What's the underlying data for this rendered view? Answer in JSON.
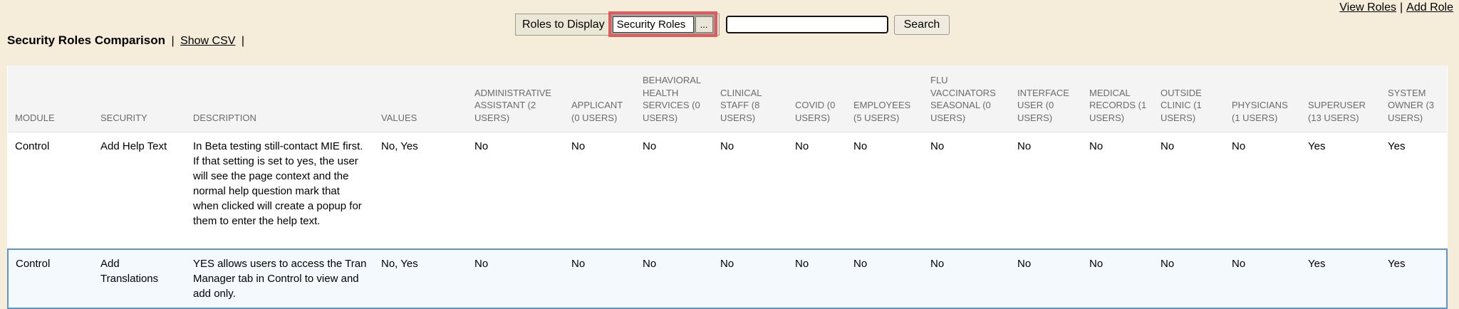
{
  "colors": {
    "page_bg": "#f5edda",
    "highlight_red": "#e15b5e",
    "table_header_bg": "#f4f4f4",
    "highlight_row_bg": "#f3f9fd",
    "highlight_row_border": "#5f94c5"
  },
  "top_bar": {
    "view_roles_label": "View Roles",
    "separator": "|",
    "add_role_label": "Add Role"
  },
  "controls": {
    "roles_to_display_label": "Roles to Display",
    "roles_select_value": "Security Roles",
    "ellipsis_button_label": "...",
    "search_input_value": "",
    "search_button_label": "Search"
  },
  "header": {
    "title": "Security Roles Comparison",
    "separator": "|",
    "csv_link_label": "Show CSV"
  },
  "table": {
    "columns": [
      "MODULE",
      "SECURITY",
      "DESCRIPTION",
      "VALUES",
      "ADMINISTRATIVE ASSISTANT (2 USERS)",
      "APPLICANT (0 USERS)",
      "BEHAVIORAL HEALTH SERVICES (0 USERS)",
      "CLINICAL STAFF (8 USERS)",
      "COVID (0 USERS)",
      "EMPLOYEES (5 USERS)",
      "FLU VACCINATORS SEASONAL (0 USERS)",
      "INTERFACE USER (0 USERS)",
      "MEDICAL RECORDS (1 USERS)",
      "OUTSIDE CLINIC (1 USERS)",
      "PHYSICIANS (1 USERS)",
      "SUPERUSER (13 USERS)",
      "SYSTEM OWNER (3 USERS)"
    ],
    "rows": [
      {
        "highlighted": false,
        "cells": [
          "Control",
          "Add Help Text",
          "In Beta testing still-contact MIE first. If that setting is set to yes, the user will see the page context and the normal help question mark that when clicked will create a popup for them to enter the help text.",
          "No, Yes",
          "No",
          "No",
          "No",
          "No",
          "No",
          "No",
          "No",
          "No",
          "No",
          "No",
          "No",
          "Yes",
          "Yes"
        ]
      },
      {
        "highlighted": true,
        "cells": [
          "Control",
          "Add Translations",
          "YES allows users to access the Tran Manager tab in Control to view and add only.",
          "No, Yes",
          "No",
          "No",
          "No",
          "No",
          "No",
          "No",
          "No",
          "No",
          "No",
          "No",
          "No",
          "Yes",
          "Yes"
        ]
      }
    ]
  }
}
